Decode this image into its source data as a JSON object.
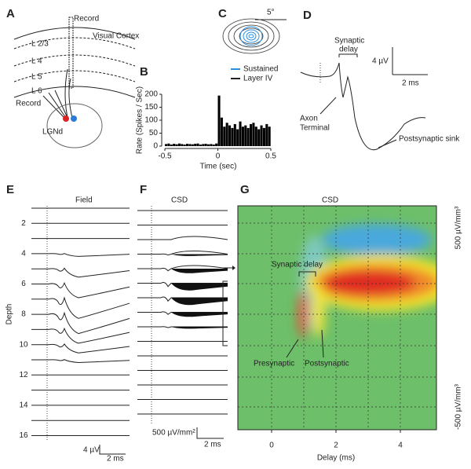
{
  "chart_data": {
    "type": "histogram",
    "panel_label": "B",
    "y_label": "Rate (Spikes / Sec)",
    "x_label": "Time (sec)",
    "bins": [
      -0.5,
      -0.475,
      -0.45,
      -0.425,
      -0.4,
      -0.375,
      -0.35,
      -0.325,
      -0.3,
      -0.275,
      -0.25,
      -0.225,
      -0.2,
      -0.175,
      -0.15,
      -0.125,
      -0.1,
      -0.075,
      -0.05,
      -0.025,
      0,
      0.025,
      0.05,
      0.075,
      0.1,
      0.125,
      0.15,
      0.175,
      0.2,
      0.225,
      0.25,
      0.275,
      0.3,
      0.325,
      0.35,
      0.375,
      0.4,
      0.425,
      0.45,
      0.475,
      0.5
    ],
    "values": [
      8,
      10,
      6,
      9,
      7,
      10,
      8,
      6,
      9,
      8,
      7,
      9,
      10,
      6,
      8,
      9,
      7,
      8,
      6,
      10,
      195,
      110,
      75,
      90,
      80,
      70,
      85,
      65,
      95,
      75,
      80,
      70,
      85,
      90,
      75,
      65,
      80,
      70,
      85,
      75
    ],
    "color": "#000000",
    "xlim": [
      -0.5,
      0.5
    ],
    "ylim": [
      0,
      200
    ],
    "xticks": [
      -0.5,
      0,
      0.5
    ],
    "yticks": [
      0,
      50,
      100,
      150,
      200
    ]
  },
  "panels": {
    "a": {
      "label": "A",
      "record_top": "Record",
      "region": "Visual Cortex",
      "layers": [
        "L 2/3",
        "L 4",
        "L 5",
        "L 6"
      ],
      "record_bottom": "Record",
      "nucleus": "LGNd"
    },
    "c": {
      "label": "C",
      "scale": "5°",
      "legend": [
        "Sustained",
        "Layer IV"
      ]
    },
    "d": {
      "label": "D",
      "delay": [
        "Synaptic",
        "delay"
      ],
      "amp_scale": "4 µV",
      "time_scale": "2 ms",
      "axon": [
        "Axon",
        "Terminal"
      ],
      "sink": "Postsynaptic sink"
    },
    "e": {
      "label": "E",
      "title": "Field",
      "y_label": "Depth",
      "depth_ticks": [
        2,
        4,
        6,
        8,
        10,
        12,
        14,
        16
      ],
      "amp_scale": "4 µV",
      "time_scale": "2 ms"
    },
    "f": {
      "label": "F",
      "title": "CSD",
      "amp_scale": "500 µV/mm²",
      "time_scale": "2 ms"
    },
    "g": {
      "label": "G",
      "title": "CSD",
      "x_ticks": [
        0,
        2,
        4
      ],
      "x_label": "Delay (ms)",
      "cbar_top": "500 µV/mm³",
      "cbar_bottom": "-500 µV/mm³",
      "delay": "Synaptic delay",
      "pre": "Presynaptic",
      "post": "Postsynaptic"
    }
  }
}
